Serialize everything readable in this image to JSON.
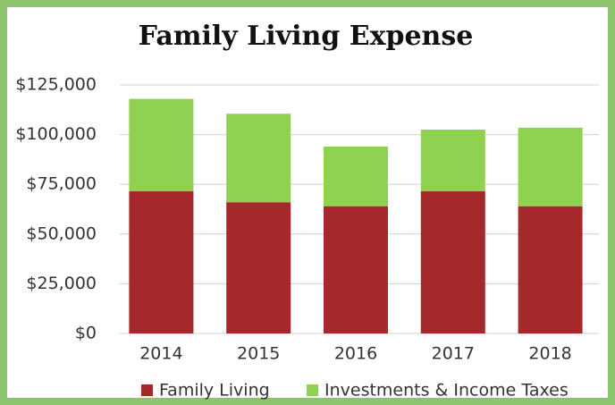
{
  "chart_data": {
    "type": "stacked_bar",
    "title": "Family Living Expense",
    "categories": [
      "2014",
      "2015",
      "2016",
      "2017",
      "2018"
    ],
    "series": [
      {
        "name": "Family Living",
        "color": "#a5282b",
        "values": [
          71500,
          66000,
          64000,
          71500,
          64000
        ]
      },
      {
        "name": "Investments & Income Taxes",
        "color": "#8fd150",
        "values": [
          46500,
          44500,
          30000,
          31000,
          39500
        ]
      }
    ],
    "ylim": [
      0,
      125000
    ],
    "yticks": [
      {
        "value": 0,
        "label": "$0"
      },
      {
        "value": 25000,
        "label": "$25,000"
      },
      {
        "value": 50000,
        "label": "$50,000"
      },
      {
        "value": 75000,
        "label": "$75,000"
      },
      {
        "value": 100000,
        "label": "$100,000"
      },
      {
        "value": 125000,
        "label": "$125,000"
      }
    ],
    "grid": true,
    "legend": "bottom"
  }
}
